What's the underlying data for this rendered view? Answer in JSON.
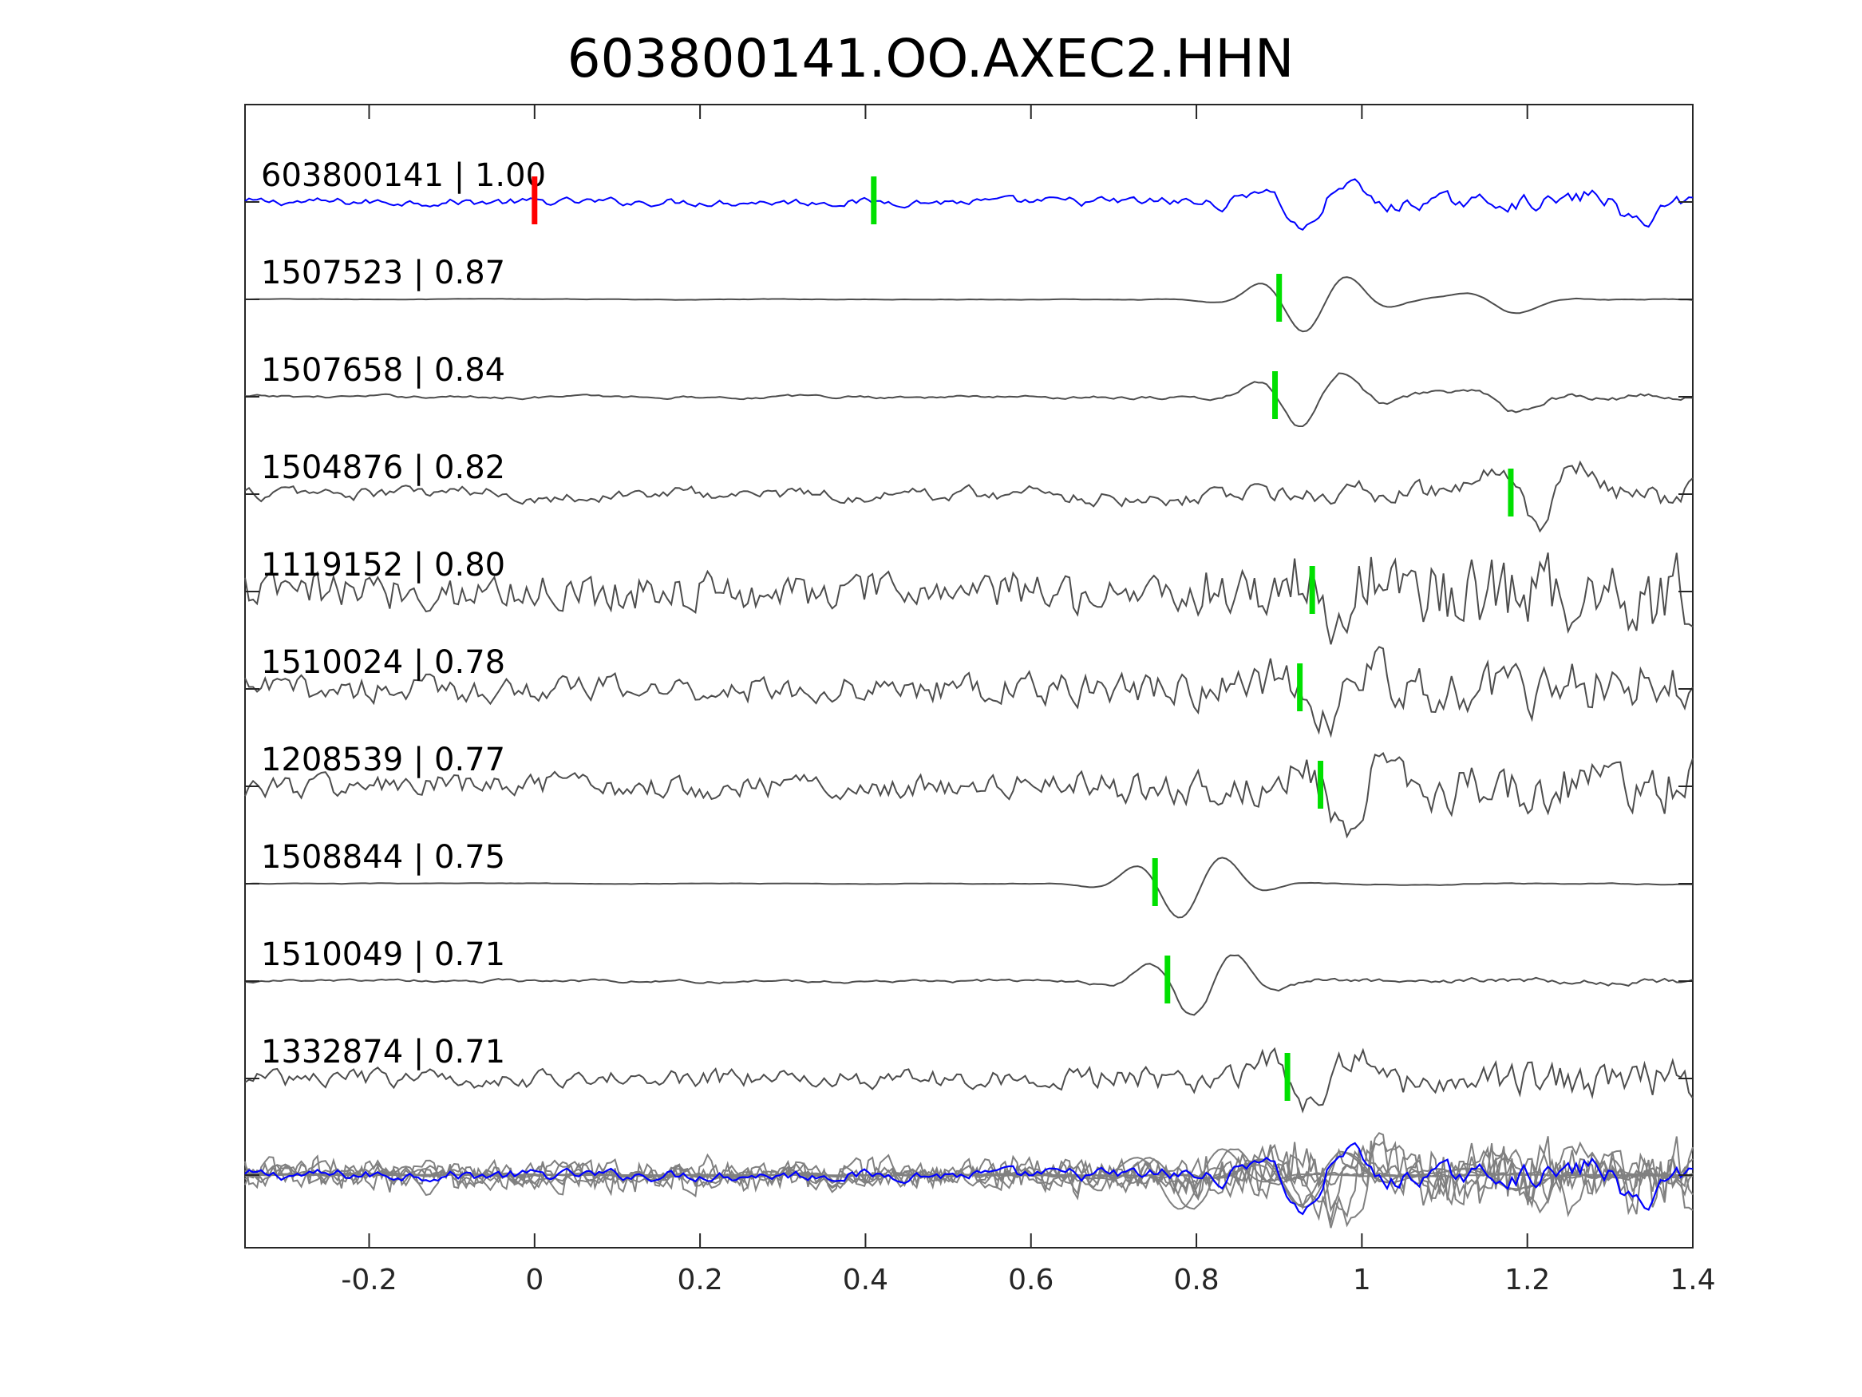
{
  "chart_data": {
    "type": "line",
    "title": "603800141.OO.AXEC2.HHN",
    "xlabel": "",
    "ylabel": "",
    "xlim": [
      -0.35,
      1.4
    ],
    "xticks": [
      -0.2,
      0,
      0.2,
      0.4,
      0.6,
      0.8,
      1,
      1.2,
      1.4
    ],
    "xtick_labels": [
      "-0.2",
      "0",
      "0.2",
      "0.4",
      "0.6",
      "0.8",
      "1",
      "1.2",
      "1.4"
    ],
    "grid": false,
    "legend": "none",
    "colors": {
      "template": "#0000ff",
      "match": "#4d4d4d",
      "stack": "#808080",
      "pick": "#00e000",
      "origin_pick": "#ff0000",
      "axis": "#262626"
    },
    "origin_marker_time": 0,
    "stacked_overlay": true,
    "traces": [
      {
        "id": "603800141",
        "cc": "1.00",
        "label": "603800141 | 1.00",
        "pick_time": 0.41,
        "template": true
      },
      {
        "id": "1507523",
        "cc": "0.87",
        "label": "1507523 | 0.87",
        "pick_time": 0.9
      },
      {
        "id": "1507658",
        "cc": "0.84",
        "label": "1507658 | 0.84",
        "pick_time": 0.895
      },
      {
        "id": "1504876",
        "cc": "0.82",
        "label": "1504876 | 0.82",
        "pick_time": 1.18
      },
      {
        "id": "1119152",
        "cc": "0.80",
        "label": "1119152 | 0.80",
        "pick_time": 0.94
      },
      {
        "id": "1510024",
        "cc": "0.78",
        "label": "1510024 | 0.78",
        "pick_time": 0.925
      },
      {
        "id": "1208539",
        "cc": "0.77",
        "label": "1208539 | 0.77",
        "pick_time": 0.95
      },
      {
        "id": "1508844",
        "cc": "0.75",
        "label": "1508844 | 0.75",
        "pick_time": 0.75
      },
      {
        "id": "1510049",
        "cc": "0.71",
        "label": "1510049 | 0.71",
        "pick_time": 0.765
      },
      {
        "id": "1332874",
        "cc": "0.71",
        "label": "1332874 | 0.71",
        "pick_time": 0.91
      }
    ]
  }
}
